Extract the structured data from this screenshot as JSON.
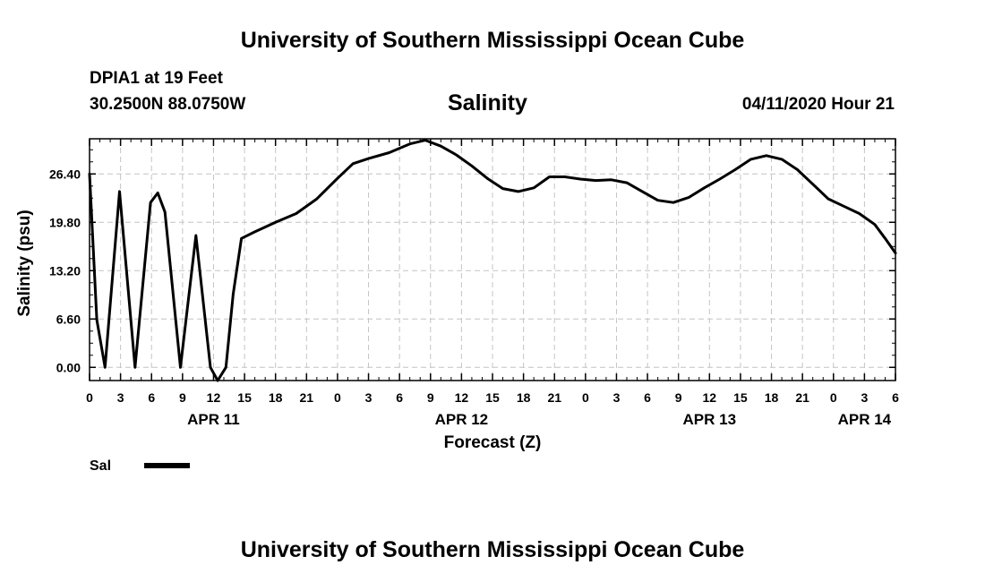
{
  "header": {
    "title": "University of Southern Mississippi Ocean Cube",
    "station": "DPIA1 at 19 Feet",
    "coords": "30.2500N 88.0750W",
    "chart_title": "Salinity",
    "timestamp": "04/11/2020 Hour 21"
  },
  "footer": {
    "title": "University of Southern Mississippi Ocean Cube"
  },
  "chart_data": {
    "type": "line",
    "title": "Salinity",
    "xlabel": "Forecast (Z)",
    "ylabel": "Salinity (psu)",
    "y_ticks": [
      0.0,
      6.6,
      13.2,
      19.8,
      26.4
    ],
    "ylim": [
      -1.8,
      31.2
    ],
    "x_range_hours": [
      0,
      78
    ],
    "x_tick_labels": [
      "0",
      "3",
      "6",
      "9",
      "12",
      "15",
      "18",
      "21",
      "0",
      "3",
      "6",
      "9",
      "12",
      "15",
      "18",
      "21",
      "0",
      "3",
      "6",
      "9",
      "12",
      "15",
      "18",
      "21",
      "0",
      "3",
      "6"
    ],
    "date_labels": [
      {
        "label": "APR 11",
        "hour": 12
      },
      {
        "label": "APR 12",
        "hour": 36
      },
      {
        "label": "APR 13",
        "hour": 60
      },
      {
        "label": "APR 14",
        "hour": 75
      }
    ],
    "grid": true,
    "legend": [
      {
        "name": "Sal",
        "color": "#000000"
      }
    ],
    "series": [
      {
        "name": "Sal",
        "color": "#000000",
        "x": [
          0,
          0.7,
          1.5,
          2.9,
          4.4,
          5.9,
          6.6,
          7.3,
          8.8,
          10.3,
          11.7,
          12.4,
          13.2,
          13.9,
          14.7,
          16,
          18,
          20,
          22,
          24,
          25.5,
          27,
          29,
          31,
          32.5,
          34,
          35.5,
          37,
          38.5,
          40,
          41.5,
          43,
          44.5,
          46,
          47.5,
          49,
          50.5,
          52,
          53.5,
          55,
          56.5,
          58,
          59.5,
          61,
          62.5,
          64,
          65.5,
          67,
          68.5,
          70,
          71.5,
          73,
          74.5,
          76,
          77,
          78
        ],
        "y": [
          26.4,
          6.5,
          0.0,
          24.0,
          0.0,
          22.5,
          23.8,
          21.2,
          0.0,
          18.0,
          0.0,
          -1.8,
          0.0,
          10.0,
          17.6,
          18.5,
          19.8,
          21.0,
          23.0,
          25.8,
          27.8,
          28.5,
          29.3,
          30.5,
          31.0,
          30.2,
          29.0,
          27.5,
          25.8,
          24.4,
          24.0,
          24.5,
          26.0,
          26.0,
          25.7,
          25.5,
          25.6,
          25.2,
          24.0,
          22.8,
          22.5,
          23.2,
          24.5,
          25.7,
          27.0,
          28.4,
          28.9,
          28.4,
          27.0,
          25.0,
          23.0,
          22.0,
          21.0,
          19.5,
          17.6,
          15.6
        ]
      }
    ]
  }
}
